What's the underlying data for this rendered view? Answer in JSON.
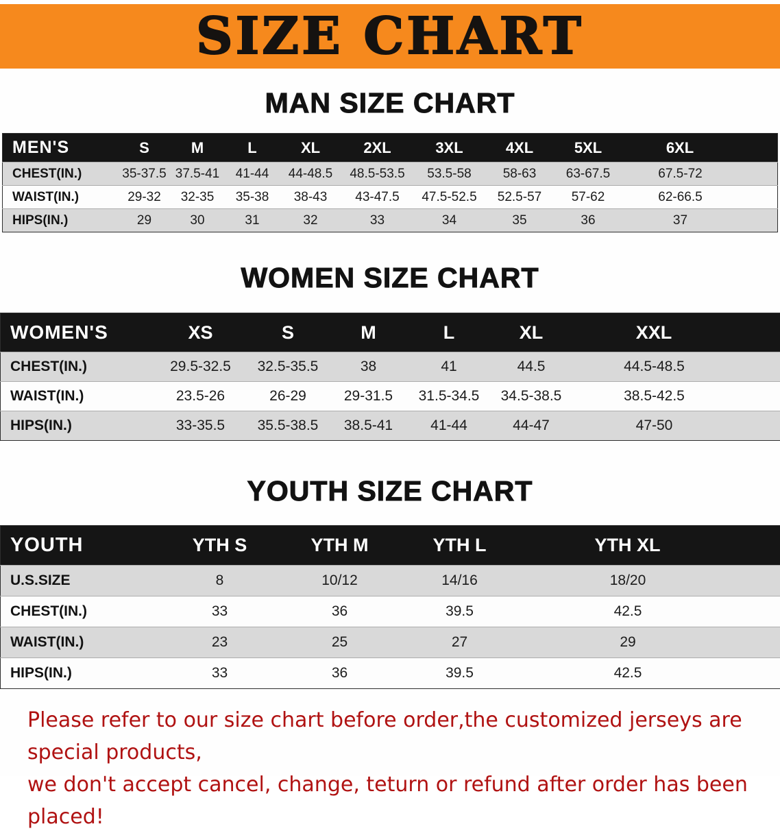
{
  "banner": {
    "title": "SIZE CHART",
    "bg_color": "#F6891D",
    "text_color": "#151210"
  },
  "sections": [
    {
      "id": "men",
      "heading": "MAN SIZE CHART",
      "table": {
        "header": [
          "MEN'S",
          "S",
          "M",
          "L",
          "XL",
          "2XL",
          "3XL",
          "4XL",
          "5XL",
          "6XL"
        ],
        "rows": [
          {
            "label": "CHEST(IN.)",
            "values": [
              "35-37.5",
              "37.5-41",
              "41-44",
              "44-48.5",
              "48.5-53.5",
              "53.5-58",
              "58-63",
              "63-67.5",
              "67.5-72"
            ]
          },
          {
            "label": "WAIST(IN.)",
            "values": [
              "29-32",
              "32-35",
              "35-38",
              "38-43",
              "43-47.5",
              "47.5-52.5",
              "52.5-57",
              "57-62",
              "62-66.5"
            ]
          },
          {
            "label": "HIPS(IN.)",
            "values": [
              "29",
              "30",
              "31",
              "32",
              "33",
              "34",
              "35",
              "36",
              "37"
            ]
          }
        ]
      }
    },
    {
      "id": "women",
      "heading": "WOMEN SIZE CHART",
      "table": {
        "header": [
          "WOMEN'S",
          "XS",
          "S",
          "M",
          "L",
          "XL",
          "XXL"
        ],
        "rows": [
          {
            "label": "CHEST(IN.)",
            "values": [
              "29.5-32.5",
              "32.5-35.5",
              "38",
              "41",
              "44.5",
              "44.5-48.5"
            ]
          },
          {
            "label": "WAIST(IN.)",
            "values": [
              "23.5-26",
              "26-29",
              "29-31.5",
              "31.5-34.5",
              "34.5-38.5",
              "38.5-42.5"
            ]
          },
          {
            "label": "HIPS(IN.)",
            "values": [
              "33-35.5",
              "35.5-38.5",
              "38.5-41",
              "41-44",
              "44-47",
              "47-50"
            ]
          }
        ]
      }
    },
    {
      "id": "youth",
      "heading": "YOUTH SIZE CHART",
      "table": {
        "header": [
          "YOUTH",
          "YTH S",
          "YTH M",
          "YTH L",
          "YTH XL"
        ],
        "rows": [
          {
            "label": "U.S.SIZE",
            "values": [
              "8",
              "10/12",
              "14/16",
              "18/20"
            ]
          },
          {
            "label": "CHEST(IN.)",
            "values": [
              "33",
              "36",
              "39.5",
              "42.5"
            ]
          },
          {
            "label": "WAIST(IN.)",
            "values": [
              "23",
              "25",
              "27",
              "29"
            ]
          },
          {
            "label": "HIPS(IN.)",
            "values": [
              "33",
              "36",
              "39.5",
              "42.5"
            ]
          }
        ]
      }
    }
  ],
  "disclaimer": {
    "line1": "Please refer to our size chart before order,the customized jerseys are special products,",
    "line2": "we don't accept cancel, change, teturn or refund after order has been placed!",
    "color": "#B01212"
  }
}
